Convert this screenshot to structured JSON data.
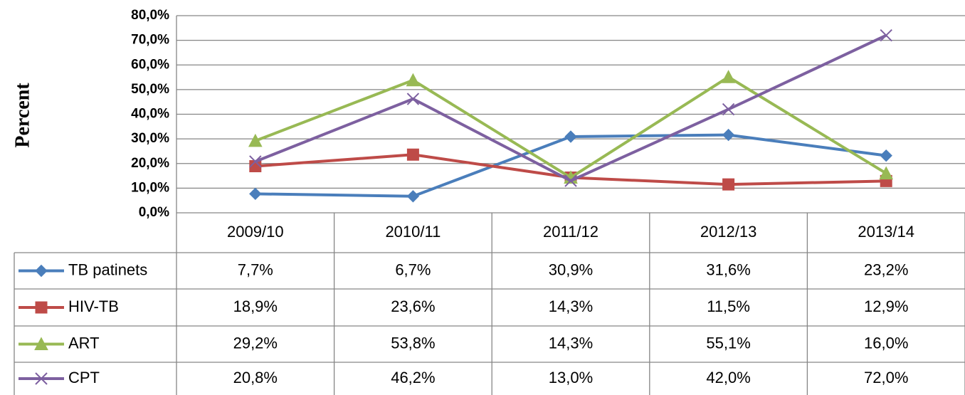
{
  "chart_data": {
    "type": "line",
    "y_label": "Percent",
    "categories": [
      "2009/10",
      "2010/11",
      "2011/12",
      "2012/13",
      "2013/14"
    ],
    "series": [
      {
        "name": "TB patinets",
        "color": "#4a7ebb",
        "marker": "diamond",
        "values": [
          7.7,
          6.7,
          30.9,
          31.6,
          23.2
        ],
        "value_labels": [
          "7,7%",
          "6,7%",
          "30,9%",
          "31,6%",
          "23,2%"
        ]
      },
      {
        "name": "HIV-TB",
        "color": "#be4b48",
        "marker": "square",
        "values": [
          18.9,
          23.6,
          14.3,
          11.5,
          12.9
        ],
        "value_labels": [
          "18,9%",
          "23,6%",
          "14,3%",
          "11,5%",
          "12,9%"
        ]
      },
      {
        "name": "ART",
        "color": "#98b954",
        "marker": "triangle",
        "values": [
          29.2,
          53.8,
          14.3,
          55.1,
          16.0
        ],
        "value_labels": [
          "29,2%",
          "53,8%",
          "14,3%",
          "55,1%",
          "16,0%"
        ]
      },
      {
        "name": "CPT",
        "color": "#7d60a0",
        "marker": "x",
        "values": [
          20.8,
          46.2,
          13.0,
          42.0,
          72.0
        ],
        "value_labels": [
          "20,8%",
          "46,2%",
          "13,0%",
          "42,0%",
          "72,0%"
        ]
      }
    ],
    "ylim": [
      0,
      80
    ],
    "yticks": [
      {
        "value": 0,
        "label": "0,0%"
      },
      {
        "value": 10,
        "label": "10,0%"
      },
      {
        "value": 20,
        "label": "20,0%"
      },
      {
        "value": 30,
        "label": "30,0%"
      },
      {
        "value": 40,
        "label": "40,0%"
      },
      {
        "value": 50,
        "label": "50,0%"
      },
      {
        "value": 60,
        "label": "60,0%"
      },
      {
        "value": 70,
        "label": "70,0%"
      },
      {
        "value": 80,
        "label": "80,0%"
      }
    ],
    "grid": true
  }
}
